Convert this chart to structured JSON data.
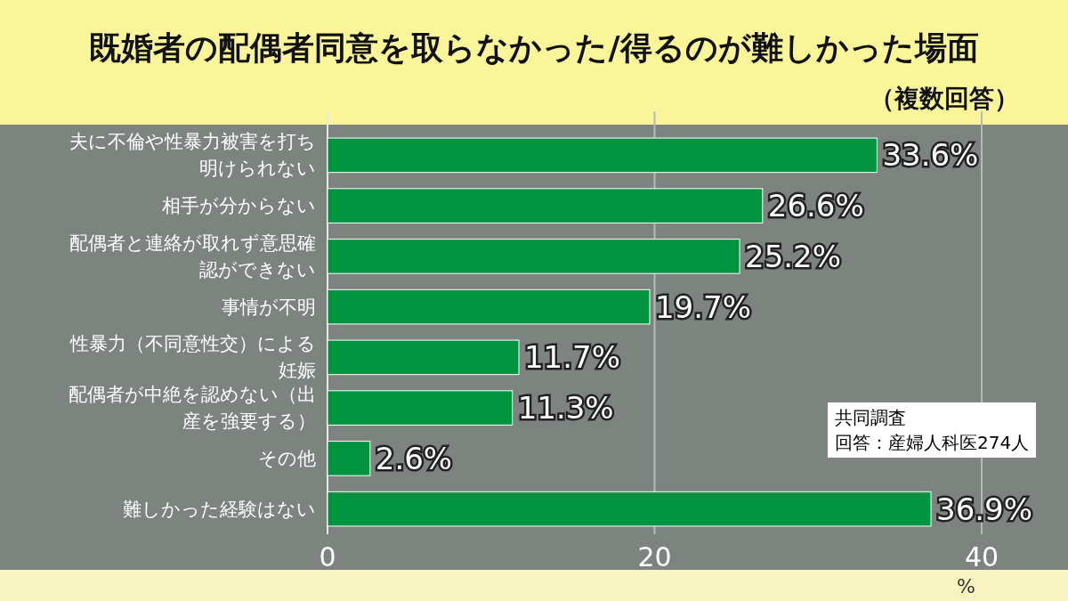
{
  "chart_data": {
    "type": "bar",
    "orientation": "horizontal",
    "title": "既婚者の配偶者同意を取らなかった/得るのが難しかった場面",
    "subtitle": "（複数回答）",
    "categories": [
      "夫に不倫や性暴力被害を打ち明けられない",
      "相手が分からない",
      "配偶者と連絡が取れず意思確認ができない",
      "事情が不明",
      "性暴力（不同意性交）による妊娠",
      "配偶者が中絶を認めない（出産を強要する）",
      "その他",
      "難しかった経験はない"
    ],
    "values": [
      33.6,
      26.6,
      25.2,
      19.7,
      11.7,
      11.3,
      2.6,
      36.9
    ],
    "value_labels": [
      "33.6%",
      "26.6%",
      "25.2%",
      "19.7%",
      "11.7%",
      "11.3%",
      "2.6%",
      "36.9%"
    ],
    "color": "#009440",
    "xlim": [
      0,
      40
    ],
    "xticks": [
      0,
      20,
      40
    ],
    "xlabel": "%",
    "grid": "x",
    "annotations": [
      "共同調査",
      "回答：産婦人科医274人"
    ]
  }
}
